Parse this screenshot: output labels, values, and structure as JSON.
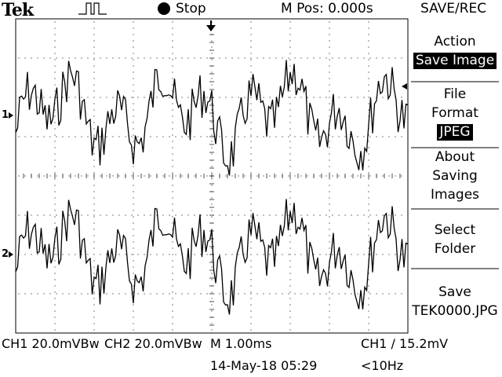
{
  "header": {
    "brand": "Tek",
    "run_state": "Stop",
    "m_pos": "M Pos: 0.000s",
    "menu_title": "SAVE/REC"
  },
  "menu": {
    "action_label": "Action",
    "action_value": "Save Image",
    "file_format_line1": "File",
    "file_format_line2": "Format",
    "file_format_value": "JPEG",
    "about_line1": "About",
    "about_line2": "Saving",
    "about_line3": "Images",
    "select_line1": "Select",
    "select_line2": "Folder",
    "save_line1": "Save",
    "save_line2": "TEK0000.JPG"
  },
  "status": {
    "ch1_scale": "CH1  20.0mVBw",
    "ch2_scale": "CH2  20.0mVBw",
    "timebase": "M 1.00ms",
    "trigger": "CH1 ∕ 15.2mV",
    "datetime": "14-May-18 05:29",
    "freq": "<10Hz"
  },
  "markers": {
    "ch1": "1",
    "ch2": "2"
  },
  "colors": {
    "background": "#ffffff",
    "foreground": "#000000"
  }
}
